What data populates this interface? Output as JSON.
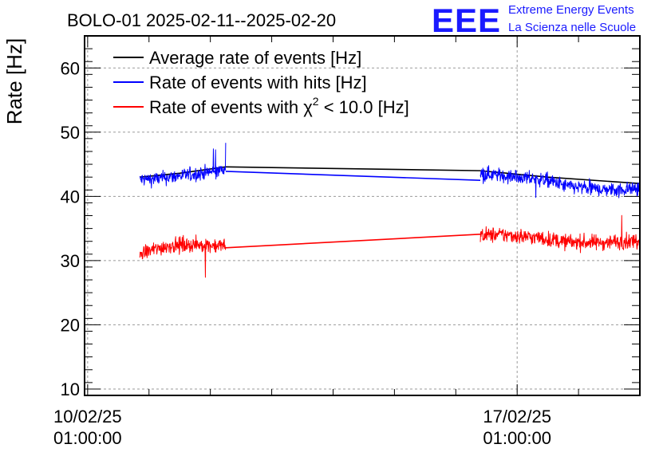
{
  "chart_data": {
    "type": "line",
    "title": "BOLO-01 2025-02-11--2025-02-20",
    "ylabel": "Rate [Hz]",
    "xlabel": "",
    "ylim": [
      9,
      65
    ],
    "yticks": [
      10,
      20,
      30,
      40,
      50,
      60
    ],
    "xlim_days": [
      -0.05,
      9.0
    ],
    "x_tick_labels": [
      {
        "day": 0,
        "line1": "10/02/25",
        "line2": "01:00:00"
      },
      {
        "day": 7,
        "line1": "17/02/25",
        "line2": "01:00:00"
      }
    ],
    "grid": true,
    "legend_position": "top-left",
    "gap": {
      "start_day": 2.25,
      "end_day": 6.4
    },
    "series": [
      {
        "name": "Average rate of events [Hz]",
        "color": "#000000",
        "segments": [
          {
            "x": [
              0.85,
              1.5,
              2.25
            ],
            "y": [
              43.0,
              43.6,
              44.6
            ]
          },
          {
            "x": [
              6.4,
              7.5,
              9.0
            ],
            "y": [
              44.0,
              43.0,
              42.0
            ]
          }
        ],
        "bridge": {
          "x": [
            2.25,
            6.4
          ],
          "y": [
            44.6,
            44.0
          ]
        }
      },
      {
        "name": "Rate of events with hits [Hz]",
        "color": "#0000ff",
        "segments": [
          {
            "x": [
              0.85,
              1.2,
              1.5,
              1.8,
              2.0,
              2.25
            ],
            "y": [
              42.6,
              42.8,
              43.2,
              43.5,
              43.8,
              44.2
            ]
          },
          {
            "x": [
              6.4,
              7.0,
              7.5,
              7.8,
              8.2,
              8.6,
              9.0
            ],
            "y": [
              43.6,
              43.0,
              42.5,
              41.6,
              41.2,
              41.0,
              41.3
            ]
          }
        ],
        "noise": 1.1,
        "bridge": {
          "x": [
            2.25,
            6.4
          ],
          "y": [
            43.9,
            42.5
          ]
        }
      },
      {
        "name": "Rate of events with χ² < 10.0 [Hz]",
        "color": "#ff0000",
        "segments": [
          {
            "x": [
              0.85,
              1.0,
              1.3,
              1.6,
              2.0,
              2.25
            ],
            "y": [
              31.0,
              31.5,
              32.3,
              32.5,
              32.4,
              32.3
            ]
          },
          {
            "x": [
              6.4,
              6.8,
              7.3,
              7.8,
              8.3,
              9.0
            ],
            "y": [
              34.0,
              34.0,
              33.6,
              32.9,
              32.8,
              33.1
            ]
          }
        ],
        "noise": 1.2,
        "bridge": {
          "x": [
            2.25,
            6.4
          ],
          "y": [
            32.0,
            34.1
          ]
        }
      }
    ]
  },
  "legend": {
    "items": [
      {
        "label": "Average rate of events [Hz]",
        "color": "#000000"
      },
      {
        "label": "Rate of events with hits [Hz]",
        "color": "#0000ff"
      },
      {
        "label_main": "Rate of events with ",
        "label_chi": "χ",
        "label_sup": "2",
        "label_tail": " < 10.0 [Hz]",
        "color": "#ff0000"
      }
    ]
  },
  "logo": {
    "mark": "EEE",
    "line1": "Extreme Energy Events",
    "line2": "La Scienza nelle Scuole",
    "color": "#1a1aff"
  }
}
